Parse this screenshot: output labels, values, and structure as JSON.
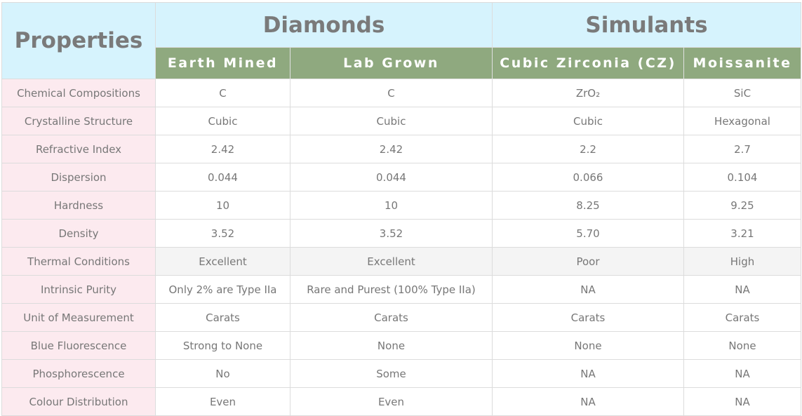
{
  "header": {
    "properties_label": "Properties",
    "groups": [
      "Diamonds",
      "Simulants"
    ],
    "columns": [
      "Earth Mined",
      "Lab Grown",
      "Cubic Zirconia (CZ)",
      "Moissanite"
    ]
  },
  "colors": {
    "header_bg": "#d6f3fd",
    "subheader_bg": "#8fa97f",
    "property_bg": "#fceaef",
    "highlight_row_bg": "#f4f4f4"
  },
  "rows": [
    {
      "property": "Chemical Compositions",
      "values": [
        "C",
        "C",
        "ZrO₂",
        "SiC"
      ]
    },
    {
      "property": "Crystalline Structure",
      "values": [
        "Cubic",
        "Cubic",
        "Cubic",
        "Hexagonal"
      ]
    },
    {
      "property": "Refractive Index",
      "values": [
        "2.42",
        "2.42",
        "2.2",
        "2.7"
      ]
    },
    {
      "property": "Dispersion",
      "values": [
        "0.044",
        "0.044",
        "0.066",
        "0.104"
      ]
    },
    {
      "property": "Hardness",
      "values": [
        "10",
        "10",
        "8.25",
        "9.25"
      ]
    },
    {
      "property": "Density",
      "values": [
        "3.52",
        "3.52",
        "5.70",
        "3.21"
      ]
    },
    {
      "property": "Thermal Conditions",
      "values": [
        "Excellent",
        "Excellent",
        "Poor",
        "High"
      ],
      "highlighted": true
    },
    {
      "property": "Intrinsic Purity",
      "values": [
        "Only 2% are Type IIa",
        "Rare and Purest (100% Type IIa)",
        "NA",
        "NA"
      ]
    },
    {
      "property": "Unit of Measurement",
      "values": [
        "Carats",
        "Carats",
        "Carats",
        "Carats"
      ]
    },
    {
      "property": "Blue Fluorescence",
      "values": [
        "Strong to None",
        "None",
        "None",
        "None"
      ]
    },
    {
      "property": "Phosphorescence",
      "values": [
        "No",
        "Some",
        "NA",
        "NA"
      ]
    },
    {
      "property": "Colour Distribution",
      "values": [
        "Even",
        "Even",
        "NA",
        "NA"
      ]
    }
  ]
}
